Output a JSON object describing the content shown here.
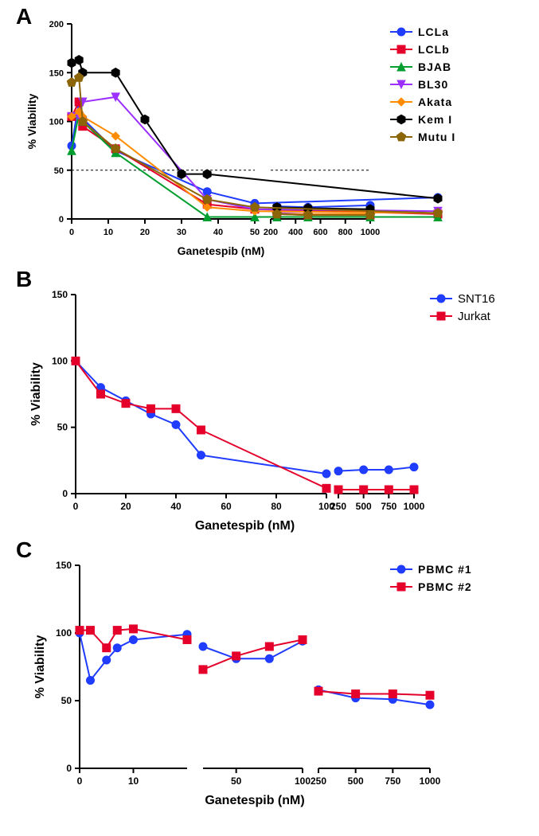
{
  "panelA": {
    "label": "A",
    "type": "line",
    "xlabel": "Ganetespib (nM)",
    "ylabel": "% Viability",
    "ylim": [
      0,
      200
    ],
    "ytick_step": 50,
    "x_segments": [
      {
        "domain": [
          0,
          50
        ],
        "ticks": [
          0,
          10,
          20,
          30,
          40,
          50
        ],
        "pixel_range": [
          80,
          310
        ]
      },
      {
        "domain": [
          200,
          1000
        ],
        "ticks": [
          200,
          400,
          600,
          800,
          1000
        ],
        "pixel_range": [
          330,
          455
        ]
      }
    ],
    "reference_line": 50,
    "series": [
      {
        "name": "LCLa",
        "color": "#1f3cff",
        "marker": "circle",
        "data": [
          [
            0,
            75
          ],
          [
            2,
            120
          ],
          [
            3,
            103
          ],
          [
            12,
            70
          ],
          [
            37,
            28
          ],
          [
            50,
            16
          ],
          [
            100,
            22
          ],
          [
            250,
            13
          ],
          [
            500,
            12
          ],
          [
            1000,
            14
          ]
        ]
      },
      {
        "name": "LCLb",
        "color": "#e4002b",
        "marker": "square",
        "data": [
          [
            0,
            105
          ],
          [
            2,
            120
          ],
          [
            3,
            95
          ],
          [
            12,
            72
          ],
          [
            37,
            15
          ],
          [
            50,
            10
          ],
          [
            100,
            5
          ],
          [
            250,
            5
          ],
          [
            500,
            4
          ],
          [
            1000,
            4
          ]
        ]
      },
      {
        "name": "BJAB",
        "color": "#009e2e",
        "marker": "triangle",
        "data": [
          [
            0,
            70
          ],
          [
            2,
            108
          ],
          [
            3,
            100
          ],
          [
            12,
            68
          ],
          [
            37,
            2
          ],
          [
            50,
            2
          ],
          [
            100,
            2
          ],
          [
            250,
            2
          ],
          [
            500,
            2
          ],
          [
            1000,
            2
          ]
        ]
      },
      {
        "name": "BL30",
        "color": "#9b30ff",
        "marker": "triangle-down",
        "data": [
          [
            0,
            105
          ],
          [
            2,
            105
          ],
          [
            3,
            120
          ],
          [
            12,
            125
          ],
          [
            37,
            20
          ],
          [
            50,
            10
          ],
          [
            100,
            8
          ],
          [
            250,
            6
          ],
          [
            500,
            5
          ],
          [
            1000,
            5
          ]
        ]
      },
      {
        "name": "Akata",
        "color": "#ff8c00",
        "marker": "diamond",
        "data": [
          [
            0,
            105
          ],
          [
            2,
            110
          ],
          [
            3,
            105
          ],
          [
            12,
            85
          ],
          [
            37,
            12
          ],
          [
            50,
            8
          ],
          [
            100,
            6
          ],
          [
            250,
            5
          ],
          [
            500,
            5
          ],
          [
            1000,
            5
          ]
        ]
      },
      {
        "name": "Kem I",
        "color": "#000000",
        "marker": "hexagon",
        "data": [
          [
            0,
            160
          ],
          [
            2,
            163
          ],
          [
            3,
            150
          ],
          [
            12,
            150
          ],
          [
            20,
            102
          ],
          [
            30,
            46
          ],
          [
            37,
            46
          ],
          [
            100,
            21
          ],
          [
            250,
            12
          ],
          [
            500,
            11
          ],
          [
            1000,
            10
          ]
        ]
      },
      {
        "name": "Mutu I",
        "color": "#8b6508",
        "marker": "pentagon",
        "data": [
          [
            0,
            140
          ],
          [
            2,
            145
          ],
          [
            3,
            100
          ],
          [
            12,
            72
          ],
          [
            37,
            20
          ],
          [
            50,
            12
          ],
          [
            100,
            6
          ],
          [
            250,
            5
          ],
          [
            500,
            4
          ],
          [
            1000,
            4
          ]
        ]
      }
    ],
    "label_fontsize": 16,
    "tick_fontsize": 12
  },
  "panelB": {
    "label": "B",
    "type": "line",
    "xlabel": "Ganetespib (nM)",
    "ylabel": "% Viability",
    "ylim": [
      0,
      150
    ],
    "ytick_step": 50,
    "x_segments": [
      {
        "domain": [
          0,
          100
        ],
        "ticks": [
          0,
          20,
          40,
          60,
          80,
          100
        ],
        "pixel_range": [
          85,
          400
        ]
      },
      {
        "domain": [
          250,
          1000
        ],
        "ticks": [
          250,
          500,
          750,
          1000
        ],
        "pixel_range": [
          415,
          510
        ]
      }
    ],
    "series": [
      {
        "name": "SNT16",
        "color": "#1f3cff",
        "marker": "circle",
        "data": [
          [
            0,
            100
          ],
          [
            10,
            80
          ],
          [
            20,
            70
          ],
          [
            30,
            60
          ],
          [
            40,
            52
          ],
          [
            50,
            29
          ],
          [
            100,
            15
          ],
          [
            250,
            17
          ],
          [
            500,
            18
          ],
          [
            750,
            18
          ],
          [
            1000,
            20
          ]
        ]
      },
      {
        "name": "Jurkat",
        "color": "#e4002b",
        "marker": "square",
        "data": [
          [
            0,
            100
          ],
          [
            10,
            75
          ],
          [
            20,
            68
          ],
          [
            30,
            64
          ],
          [
            40,
            64
          ],
          [
            50,
            48
          ],
          [
            100,
            4
          ],
          [
            250,
            3
          ],
          [
            500,
            3
          ],
          [
            750,
            3
          ],
          [
            1000,
            3
          ]
        ]
      }
    ],
    "label_fontsize": 16,
    "tick_fontsize": 12
  },
  "panelC": {
    "label": "C",
    "type": "line",
    "xlabel": "Ganetespib (nM)",
    "ylabel": "% Viability",
    "ylim": [
      0,
      150
    ],
    "ytick_step": 50,
    "x_segments": [
      {
        "domain": [
          0,
          20
        ],
        "ticks": [
          0,
          10
        ],
        "pixel_range": [
          90,
          225
        ]
      },
      {
        "domain": [
          25,
          100
        ],
        "ticks": [
          50,
          100
        ],
        "pixel_range": [
          245,
          370
        ]
      },
      {
        "domain": [
          250,
          1000
        ],
        "ticks": [
          250,
          500,
          750,
          1000
        ],
        "pixel_range": [
          390,
          530
        ]
      }
    ],
    "series": [
      {
        "name": "PBMC #1",
        "color": "#1f3cff",
        "marker": "circle",
        "data": [
          [
            0,
            100
          ],
          [
            2,
            65
          ],
          [
            5,
            80
          ],
          [
            7,
            89
          ],
          [
            10,
            95
          ],
          [
            20,
            99
          ],
          [
            25,
            90
          ],
          [
            50,
            81
          ],
          [
            75,
            81
          ],
          [
            100,
            94
          ],
          [
            250,
            58
          ],
          [
            500,
            52
          ],
          [
            750,
            51
          ],
          [
            1000,
            47
          ]
        ]
      },
      {
        "name": "PBMC #2",
        "color": "#e4002b",
        "marker": "square",
        "data": [
          [
            0,
            102
          ],
          [
            2,
            102
          ],
          [
            5,
            89
          ],
          [
            7,
            102
          ],
          [
            10,
            103
          ],
          [
            20,
            95
          ],
          [
            25,
            73
          ],
          [
            50,
            83
          ],
          [
            75,
            90
          ],
          [
            100,
            95
          ],
          [
            250,
            57
          ],
          [
            500,
            55
          ],
          [
            750,
            55
          ],
          [
            1000,
            54
          ]
        ]
      }
    ],
    "label_fontsize": 16,
    "tick_fontsize": 12
  },
  "colors": {
    "background": "#ffffff",
    "axis": "#000000",
    "reference_line": "#000000"
  },
  "marker_size": 5,
  "line_width": 2
}
